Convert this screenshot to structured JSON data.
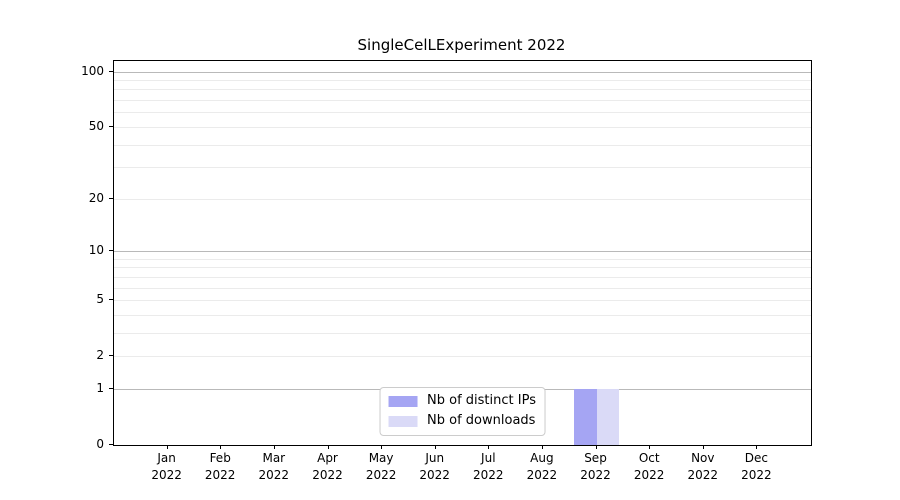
{
  "chart_data": {
    "type": "bar",
    "title": "SingleCelLExperiment 2022",
    "categories": [
      "Jan",
      "Feb",
      "Mar",
      "Apr",
      "May",
      "Jun",
      "Jul",
      "Aug",
      "Sep",
      "Oct",
      "Nov",
      "Dec"
    ],
    "category_year": "2022",
    "series": [
      {
        "name": "Nb of distinct IPs",
        "color": "#a5a5f3",
        "values": [
          0,
          0,
          0,
          0,
          0,
          0,
          0,
          0,
          1,
          0,
          0,
          0
        ]
      },
      {
        "name": "Nb of downloads",
        "color": "#dadaf7",
        "values": [
          0,
          0,
          0,
          0,
          0,
          0,
          0,
          0,
          1,
          0,
          0,
          0
        ]
      }
    ],
    "xlabel": "",
    "ylabel": "",
    "yscale": "log1p",
    "ylim": [
      0,
      114
    ],
    "yticks": [
      0,
      1,
      2,
      5,
      10,
      20,
      50,
      100
    ],
    "decade_ticks": [
      1,
      10,
      100
    ],
    "minor_gridlines": [
      3,
      4,
      6,
      7,
      8,
      9,
      30,
      40,
      60,
      70,
      80,
      90
    ],
    "grid": "on",
    "legend_position": "lower center inside",
    "colors": {
      "major_grid": "#b9b9b9",
      "minor_grid": "#ebebeb",
      "spine": "#000000",
      "text": "#000000",
      "background": "#ffffff"
    }
  }
}
